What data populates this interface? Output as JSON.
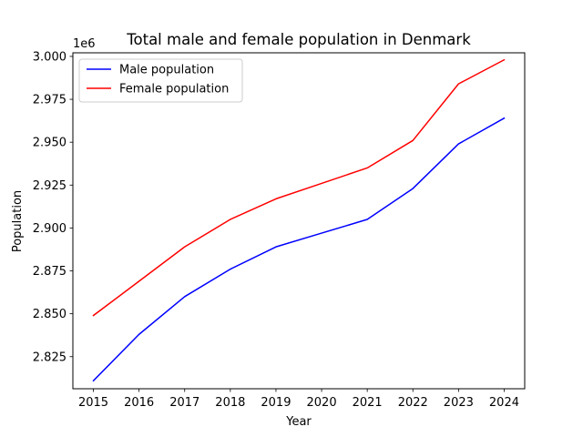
{
  "chart_data": {
    "type": "line",
    "title": "Total male and female population in Denmark",
    "xlabel": "Year",
    "ylabel": "Population",
    "y_offset_text": "1e6",
    "x": [
      2015,
      2016,
      2017,
      2018,
      2019,
      2020,
      2021,
      2022,
      2023,
      2024
    ],
    "x_tick_labels": [
      "2015",
      "2016",
      "2017",
      "2018",
      "2019",
      "2020",
      "2021",
      "2022",
      "2023",
      "2024"
    ],
    "y_tick_values": [
      2.825,
      2.85,
      2.875,
      2.9,
      2.925,
      2.95,
      2.975,
      3.0
    ],
    "y_tick_labels": [
      "2.825",
      "2.850",
      "2.875",
      "2.900",
      "2.925",
      "2.950",
      "2.975",
      "3.000"
    ],
    "ylim": [
      2.8063,
      3.0021
    ],
    "xlim": [
      2014.55,
      2024.45
    ],
    "y_unit_scale": 1000000,
    "grid": false,
    "legend_position": "upper left",
    "series": [
      {
        "name": "Male population",
        "color": "#0000ff",
        "values": [
          2.811,
          2.838,
          2.86,
          2.876,
          2.889,
          2.897,
          2.905,
          2.923,
          2.949,
          2.964
        ]
      },
      {
        "name": "Female population",
        "color": "#ff0000",
        "values": [
          2.849,
          2.869,
          2.889,
          2.905,
          2.917,
          2.926,
          2.935,
          2.951,
          2.984,
          2.998
        ]
      }
    ]
  }
}
